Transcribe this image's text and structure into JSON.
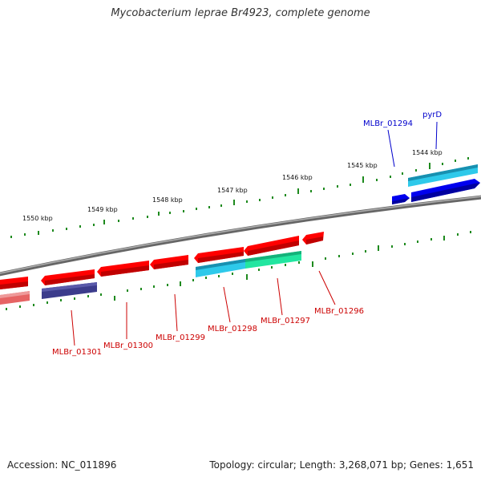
{
  "title": "Mycobacterium leprae Br4923, complete genome",
  "footer": {
    "accession": "Accession: NC_011896",
    "topology": "Topology: circular; Length: 3,268,071 bp; Genes: 1,651"
  },
  "kbp_labels": [
    "1544 kbp",
    "1545 kbp",
    "1546 kbp",
    "1547 kbp",
    "1548 kbp",
    "1549 kbp",
    "1550 kbp"
  ],
  "gene_labels": {
    "pyrD": "pyrD",
    "mlbr_01294": "MLBr_01294",
    "mlbr_01296": "MLBr_01296",
    "mlbr_01297": "MLBr_01297",
    "mlbr_01298": "MLBr_01298",
    "mlbr_01299": "MLBr_01299",
    "mlbr_01300": "MLBr_01300",
    "mlbr_01301": "MLBr_01301"
  },
  "colors": {
    "backbone": "#808080",
    "tick_green": "#1e8a1e",
    "cds_red": "#ff0000",
    "cds_blue": "#0000ee",
    "gene_cyan": "#1ec8e6",
    "gene_teal": "#22e6a0",
    "gene_navy": "#3c3c8c",
    "gene_pink": "#e66464",
    "label_red": "#cc0000",
    "label_blue": "#0000cc"
  }
}
